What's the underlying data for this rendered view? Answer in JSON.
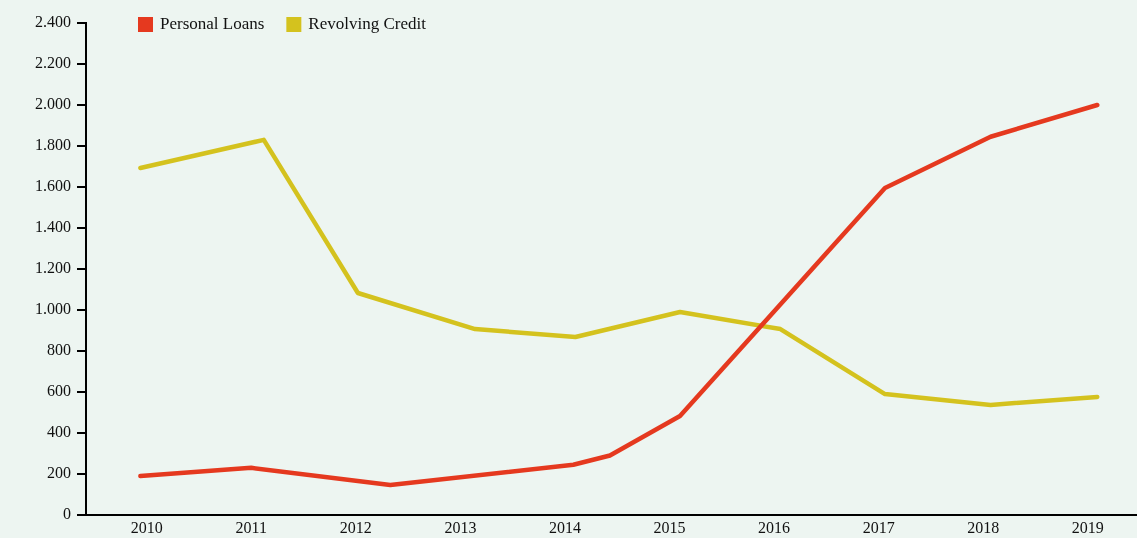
{
  "chart_data": {
    "type": "line",
    "xlim": [
      2009.42,
      2019.47
    ],
    "xticks": [
      2010,
      2011,
      2012,
      2013,
      2014,
      2015,
      2016,
      2017,
      2018,
      2019
    ],
    "ylim": [
      0,
      2400
    ],
    "yticks": [
      0,
      200,
      400,
      600,
      800,
      {
        "value": 1000,
        "label": "1.000"
      },
      {
        "value": 1200,
        "label": "1.200"
      },
      {
        "value": 1400,
        "label": "1.400"
      },
      {
        "value": 1600,
        "label": "1.600"
      },
      {
        "value": 1800,
        "label": "1.800"
      },
      {
        "value": 2000,
        "label": "2.000"
      },
      {
        "value": 2200,
        "label": "2.200"
      },
      {
        "value": 2400,
        "label": "2.400"
      }
    ],
    "grid": false,
    "legend": "top left",
    "marker": "none",
    "line_style": "solid",
    "series": [
      {
        "name": "Personal Loans",
        "color": "#e5391f",
        "x": [
          2009.94,
          2011.0,
          2012.33,
          2014.08,
          2014.43,
          2015.1,
          2017.06,
          2018.07,
          2019.09
        ],
        "values": [
          190,
          230,
          146,
          245,
          290,
          483,
          1595,
          1845,
          2000
        ]
      },
      {
        "name": "Revolving Credit",
        "color": "#d4c21e",
        "x": [
          2009.94,
          2011.12,
          2012.02,
          2013.14,
          2014.1,
          2015.1,
          2016.06,
          2017.06,
          2018.07,
          2019.09
        ],
        "values": [
          1693,
          1830,
          1083,
          907,
          868,
          990,
          907,
          590,
          537,
          576
        ]
      }
    ]
  }
}
